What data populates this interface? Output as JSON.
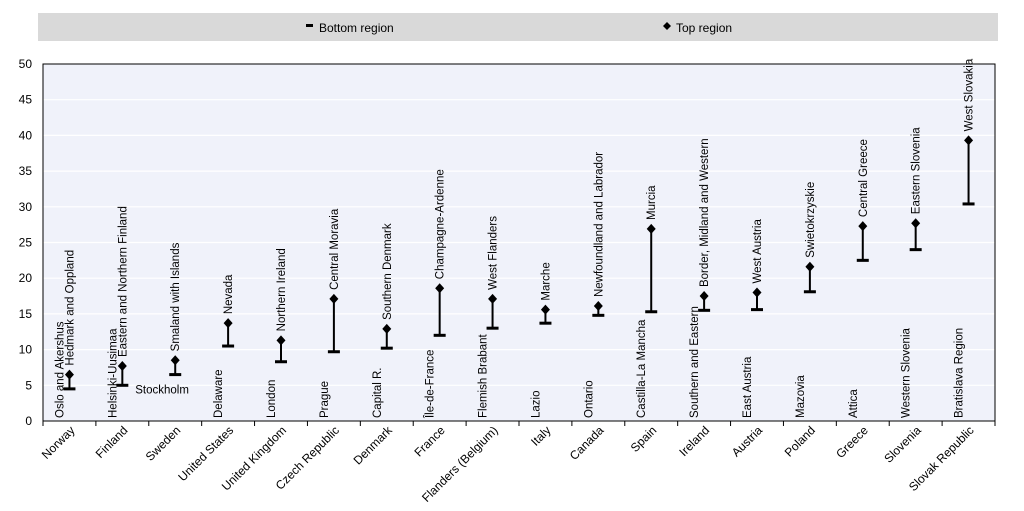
{
  "chart_data": {
    "type": "range",
    "legend": {
      "placement": "top",
      "entries": [
        {
          "name": "Bottom region",
          "marker": "dash"
        },
        {
          "name": "Top region",
          "marker": "diamond"
        }
      ]
    },
    "ylim": [
      0,
      50
    ],
    "yticks": [
      0,
      5,
      10,
      15,
      20,
      25,
      30,
      35,
      40,
      45,
      50
    ],
    "grid": true,
    "categories": [
      "Norway",
      "Finland",
      "Sweden",
      "United States",
      "United Kingdom",
      "Czech Republic",
      "Denmark",
      "France",
      "Flanders (Belgium)",
      "Italy",
      "Canada",
      "Spain",
      "Ireland",
      "Austria",
      "Poland",
      "Greece",
      "Slovenia",
      "Slovak Republic"
    ],
    "series": [
      {
        "name": "Bottom region",
        "values": [
          4.5,
          5.0,
          6.5,
          10.5,
          8.3,
          9.7,
          10.2,
          12.0,
          13.0,
          13.7,
          14.8,
          15.3,
          15.5,
          15.6,
          18.1,
          22.5,
          24.0,
          30.4
        ]
      },
      {
        "name": "Top region",
        "values": [
          6.5,
          7.7,
          8.5,
          13.7,
          11.3,
          17.1,
          12.9,
          18.6,
          17.1,
          15.6,
          16.1,
          26.9,
          17.5,
          18.0,
          21.6,
          27.3,
          27.7,
          39.3
        ]
      }
    ],
    "bottom_labels": [
      "Oslo and Akershus",
      "Helsinki-Uusimaa",
      "Stockholm",
      "Delaware",
      "London",
      "Prague",
      "Capital R.",
      "Île-de-France",
      "Flemish Brabant",
      "Lazio",
      "Ontario",
      "Castilla-La Mancha",
      "Southern and Eastern",
      "East Austria",
      "Mazovia",
      "Attica",
      "Western Slovenia",
      "Bratislava Region"
    ],
    "top_labels": [
      "Hedmark and Oppland",
      "Eastern and Northern Finland",
      "Smaland with Islands",
      "Nevada",
      "Northern Ireland",
      "Central Moravia",
      "Southern Denmark",
      "Champagne-Ardenne",
      "West Flanders",
      "Marche",
      "Newfoundland and Labrador",
      "Murcia",
      "Border, Midland and Western",
      "West Austria",
      "Swietokrzyskie",
      "Central Greece",
      "Eastern Slovenia",
      "West Slovakia"
    ],
    "colors": {
      "legend_background": "#d9d9d9",
      "plot_background": "#f0f2fa",
      "plot_border": "#000000",
      "grid": "#ffffff",
      "marker": "#000000"
    }
  }
}
